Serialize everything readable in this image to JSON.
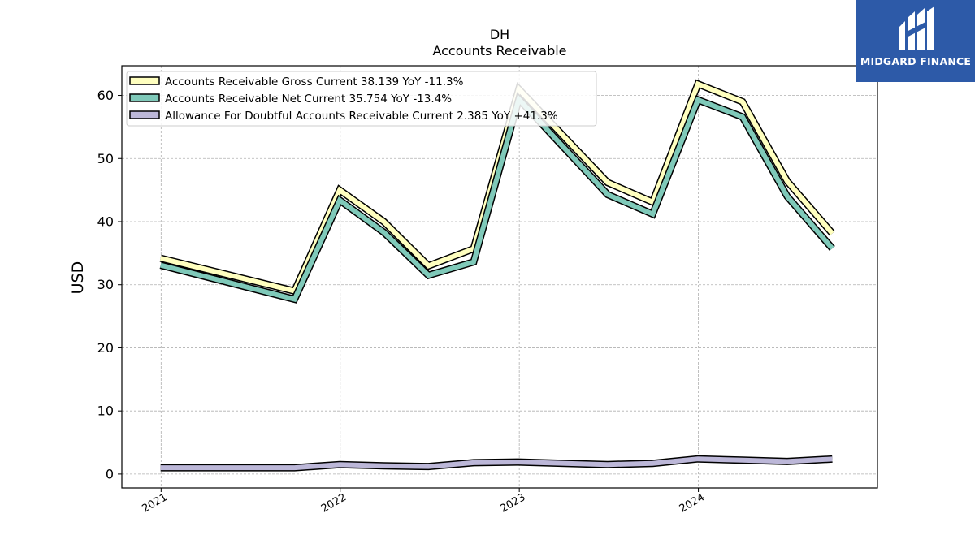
{
  "chart_data": {
    "type": "line",
    "title": "DH",
    "subtitle": "Accounts Receivable",
    "ylabel": "USD",
    "xlabel": "",
    "xlim": [
      "2020-10-13",
      "2024-12-31"
    ],
    "ylim": [
      -2.2,
      64.7
    ],
    "x_ticks": [
      "2021",
      "2022",
      "2023",
      "2024"
    ],
    "y_ticks": [
      0,
      10,
      20,
      30,
      40,
      50,
      60
    ],
    "grid": true,
    "legend_position": "top-left",
    "x": [
      "2020-12-31",
      "2021-09-30",
      "2021-12-31",
      "2022-03-31",
      "2022-06-30",
      "2022-09-30",
      "2022-12-31",
      "2023-06-30",
      "2023-09-30",
      "2023-12-31",
      "2024-03-31",
      "2024-06-30",
      "2024-09-30"
    ],
    "series": [
      {
        "name": "Accounts Receivable Gross Current",
        "legend_label": "Accounts Receivable Gross Current  38.139 YoY -11.3%",
        "color": "#ffffbf",
        "values": [
          34.2,
          29.0,
          45.0,
          40.0,
          33.0,
          35.7,
          61.0,
          46.2,
          43.1,
          61.8,
          59.0,
          46.4,
          38.139
        ]
      },
      {
        "name": "Accounts Receivable Net Current",
        "legend_label": "Accounts Receivable Net Current  35.754 YoY -13.4%",
        "color": "#7fc9b9",
        "values": [
          33.1,
          27.7,
          43.4,
          38.3,
          31.5,
          33.6,
          59.4,
          44.3,
          41.2,
          59.3,
          56.6,
          44.0,
          35.754
        ]
      },
      {
        "name": "Allowance For Doubtful Accounts Receivable Current",
        "legend_label": "Allowance For Doubtful Accounts Receivable Current  2.385 YoY +41.3%",
        "color": "#bcb7d8",
        "values": [
          1.0,
          1.0,
          1.5,
          1.3,
          1.2,
          1.8,
          1.9,
          1.5,
          1.7,
          2.4,
          2.2,
          2.0,
          2.385
        ]
      }
    ]
  },
  "logo": {
    "text": "MIDGARD FINANCE"
  }
}
